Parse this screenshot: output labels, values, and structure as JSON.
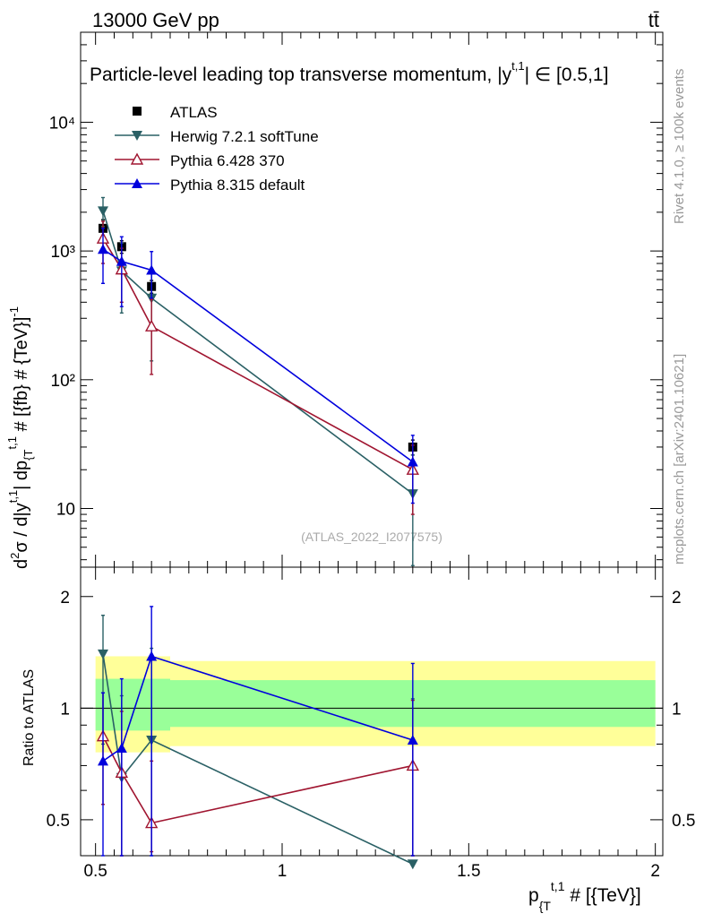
{
  "header": {
    "energy": "13000 GeV pp",
    "process": "tt̄"
  },
  "side": {
    "rivet": "Rivet 4.1.0, ≥ 100k events",
    "mcplots": "mcplots.cern.ch [arXiv:2401.10621]"
  },
  "chart_data": [
    {
      "type": "scatter",
      "panel": "main",
      "title": "Particle-level leading top transverse momentum, |y^t,1| ∈ [0.5,1]",
      "title_main": "Particle-level leading top transverse momentum, |",
      "title_sym": "y",
      "title_sup": "t,1",
      "title_rest": "| ∈ [0.5,1]",
      "ylabel": "d²σ / d|y^t,1| dp_{T}^t,1 # [{fb} # {TeV}]^-1",
      "ylabel_parts": [
        "d",
        "2",
        "σ / d|y",
        "t,1",
        "| dp",
        "{T",
        "t,1",
        " # [{fb} # {TeV}]",
        "-1"
      ],
      "yscale": "log",
      "ylim": [
        3.5,
        50000
      ],
      "xlim": [
        0.46,
        2.02
      ],
      "ytick_labels": [
        "10",
        "10²",
        "10³",
        "10⁴"
      ],
      "ytick_values": [
        10,
        100,
        1000,
        10000
      ],
      "watermark": "(ATLAS_2022_I2077575)",
      "legend_position": "top-left",
      "series": [
        {
          "name": "ATLAS",
          "color": "#000000",
          "marker": "square",
          "x": [
            0.52,
            0.57,
            0.65,
            1.35
          ],
          "y": [
            1500,
            1080,
            530,
            30
          ],
          "ylow": [
            1250,
            960,
            470,
            26
          ],
          "yhigh": [
            1750,
            1200,
            590,
            34
          ],
          "line": false
        },
        {
          "name": "Herwig 7.2.1 softTune",
          "color": "#2a6065",
          "marker": "triangle-down",
          "x": [
            0.52,
            0.57,
            0.65,
            1.35
          ],
          "y": [
            2050,
            700,
            430,
            13
          ],
          "ylow": [
            1550,
            330,
            140,
            3.6
          ],
          "yhigh": [
            2600,
            1150,
            720,
            26
          ],
          "line": true
        },
        {
          "name": "Pythia 6.428 370",
          "color": "#a01530",
          "marker": "triangle-open",
          "x": [
            0.52,
            0.57,
            0.65,
            1.35
          ],
          "y": [
            1250,
            720,
            260,
            20
          ],
          "ylow": [
            800,
            400,
            110,
            9
          ],
          "yhigh": [
            1700,
            1050,
            420,
            31
          ],
          "line": true
        },
        {
          "name": "Pythia 8.315 default",
          "color": "#0000dd",
          "marker": "triangle-up",
          "x": [
            0.52,
            0.57,
            0.65,
            1.35
          ],
          "y": [
            1030,
            830,
            710,
            23
          ],
          "ylow": [
            560,
            370,
            430,
            11
          ],
          "yhigh": [
            1500,
            1290,
            990,
            37
          ],
          "line": true
        }
      ]
    },
    {
      "type": "scatter",
      "panel": "ratio",
      "ylabel": "Ratio to ATLAS",
      "xlabel": "p_{T}^t,1 # [{TeV}]",
      "xlabel_parts": [
        "p",
        "{T",
        "t,1",
        " # [{TeV}]"
      ],
      "yscale": "log",
      "ylim": [
        0.4,
        2.4
      ],
      "xlim": [
        0.46,
        2.02
      ],
      "ytick_labels": [
        "0.5",
        "1",
        "2"
      ],
      "ytick_values": [
        0.5,
        1,
        2
      ],
      "xtick_labels": [
        "0.5",
        "1",
        "1.5",
        "2"
      ],
      "xtick_values": [
        0.5,
        1,
        1.5,
        2
      ],
      "bands": [
        {
          "name": "total uncertainty",
          "color": "#ffff99",
          "segments": [
            [
              0.5,
              0.7,
              0.76,
              1.38
            ],
            [
              0.7,
              2.0,
              0.79,
              1.34
            ]
          ]
        },
        {
          "name": "stat uncertainty",
          "color": "#99ff99",
          "segments": [
            [
              0.5,
              0.7,
              0.87,
              1.2
            ],
            [
              0.7,
              2.0,
              0.89,
              1.19
            ]
          ]
        }
      ],
      "series": [
        {
          "name": "Herwig 7.2.1 softTune",
          "color": "#2a6065",
          "marker": "triangle-down",
          "x": [
            0.52,
            0.57,
            0.65,
            1.35
          ],
          "y": [
            1.4,
            0.65,
            0.82,
            0.38
          ],
          "ylow": [
            0.8,
            0.3,
            0.3,
            0.35
          ],
          "yhigh": [
            1.78,
            1.08,
            1.45,
            1.06
          ]
        },
        {
          "name": "Pythia 6.428 370",
          "color": "#a01530",
          "marker": "triangle-open",
          "x": [
            0.52,
            0.57,
            0.65,
            1.35
          ],
          "y": [
            0.84,
            0.67,
            0.49,
            0.7
          ],
          "ylow": [
            0.55,
            0.35,
            0.41,
            0.32
          ],
          "yhigh": [
            1.1,
            0.98,
            0.72,
            1.05
          ]
        },
        {
          "name": "Pythia 8.315 default",
          "color": "#0000dd",
          "marker": "triangle-up",
          "x": [
            0.52,
            0.57,
            0.65,
            1.35
          ],
          "y": [
            0.72,
            0.78,
            1.38,
            0.82
          ],
          "ylow": [
            0.35,
            0.35,
            0.35,
            0.35
          ],
          "yhigh": [
            1.1,
            1.2,
            1.88,
            1.32
          ]
        }
      ]
    }
  ]
}
